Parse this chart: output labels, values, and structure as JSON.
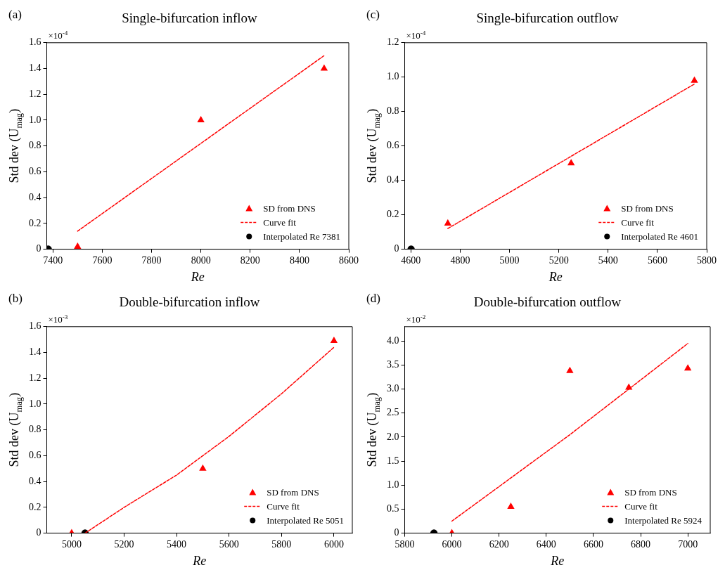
{
  "chart_data": [
    {
      "type": "scatter",
      "title": "Single-bifurcation inflow",
      "xlabel": "Re",
      "ylabel": "Std dev (U$_{mag}$)",
      "annotations": [
        "(a)",
        "×10$^{-4}$"
      ],
      "xlim": [
        7375,
        8600
      ],
      "xticks": [
        7400,
        7600,
        7800,
        8000,
        8200,
        8400,
        8600
      ],
      "ylim": [
        0,
        1.6
      ],
      "yticks": [
        0,
        0.2,
        0.4,
        0.6,
        0.8,
        {
          "value": 1,
          "label": "1.0"
        },
        1.2,
        1.4,
        1.6
      ],
      "grid": false,
      "legend": "bottom right",
      "series": [
        {
          "name": "SD from DNS",
          "type": "scatter",
          "marker": "triangle",
          "color": "#ff0000",
          "x": [
            7500,
            8000,
            8500
          ],
          "values": [
            0.02,
            1.0,
            1.4
          ]
        },
        {
          "name": "Curve fit",
          "type": "line",
          "marker": "none",
          "line_style": "dashed",
          "color": "#ff0000",
          "x": [
            7500,
            8500
          ],
          "values": [
            0.14,
            1.5
          ]
        },
        {
          "name": "Interpolated Re 7381",
          "type": "scatter",
          "marker": "circle",
          "color": "#000000",
          "x": [
            7381
          ],
          "values": [
            0
          ]
        }
      ]
    },
    {
      "type": "scatter",
      "title": "Single-bifurcation outflow",
      "xlabel": "Re",
      "ylabel": "Std dev (U$_{mag}$)",
      "annotations": [
        "(c)",
        "×10$^{-4}$"
      ],
      "xlim": [
        4575,
        5800
      ],
      "xticks": [
        4600,
        4800,
        5000,
        5200,
        5400,
        5600,
        5800
      ],
      "ylim": [
        0,
        1.2
      ],
      "yticks": [
        0,
        0.2,
        0.4,
        0.6,
        0.8,
        {
          "value": 1,
          "label": "1.0"
        },
        1.2
      ],
      "grid": false,
      "legend": "bottom right",
      "series": [
        {
          "name": "SD from DNS",
          "type": "scatter",
          "marker": "triangle",
          "color": "#ff0000",
          "x": [
            4750,
            5250,
            5750
          ],
          "values": [
            0.15,
            0.5,
            0.98
          ]
        },
        {
          "name": "Curve fit",
          "type": "line",
          "marker": "none",
          "line_style": "dashed",
          "color": "#ff0000",
          "x": [
            4750,
            5750
          ],
          "values": [
            0.12,
            0.96
          ]
        },
        {
          "name": "Interpolated Re 4601",
          "type": "scatter",
          "marker": "circle",
          "color": "#000000",
          "x": [
            4601
          ],
          "values": [
            0
          ]
        }
      ]
    },
    {
      "type": "scatter",
      "title": "Double-bifurcation inflow",
      "xlabel": "Re",
      "ylabel": "Std dev (U$_{mag}$)",
      "annotations": [
        "(b)",
        "×10$^{-3}$"
      ],
      "xlim": [
        4905,
        6070
      ],
      "xticks": [
        5000,
        5200,
        5400,
        5600,
        5800,
        6000
      ],
      "ylim": [
        0,
        1.6
      ],
      "yticks": [
        0,
        0.2,
        0.4,
        0.6,
        0.8,
        {
          "value": 1,
          "label": "1.0"
        },
        1.2,
        1.4,
        1.6
      ],
      "grid": false,
      "legend": "bottom right",
      "series": [
        {
          "name": "SD from DNS",
          "type": "scatter",
          "marker": "triangle",
          "color": "#ff0000",
          "x": [
            5000,
            5500,
            6000
          ],
          "values": [
            0.0,
            0.5,
            1.49
          ]
        },
        {
          "name": "Curve fit",
          "type": "line",
          "marker": "none",
          "line_style": "dashed",
          "color": "#ff0000",
          "x": [
            5051,
            5200,
            5400,
            5600,
            5800,
            6000
          ],
          "values": [
            0,
            0.2,
            0.45,
            0.75,
            1.08,
            1.44
          ]
        },
        {
          "name": "Interpolated Re 5051",
          "type": "scatter",
          "marker": "circle",
          "color": "#000000",
          "x": [
            5051
          ],
          "values": [
            0
          ]
        }
      ]
    },
    {
      "type": "scatter",
      "title": "Double-bifurcation outflow",
      "xlabel": "Re",
      "ylabel": "Std dev (U$_{mag}$)",
      "annotations": [
        "(d)",
        "×10$^{-2}$"
      ],
      "xlim": [
        5800,
        7095
      ],
      "xticks": [
        5800,
        6000,
        6200,
        6400,
        6600,
        6800,
        7000
      ],
      "ylim": [
        0,
        4.3
      ],
      "yticks": [
        0,
        0.5,
        {
          "value": 1,
          "label": "1.0"
        },
        1.5,
        {
          "value": 2,
          "label": "2.0"
        },
        2.5,
        {
          "value": 3,
          "label": "3.0"
        },
        3.5,
        {
          "value": 4,
          "label": "4.0"
        }
      ],
      "grid": false,
      "legend": "bottom right",
      "series": [
        {
          "name": "SD from DNS",
          "type": "scatter",
          "marker": "triangle",
          "color": "#ff0000",
          "x": [
            6000,
            6250,
            6500,
            6750,
            7000
          ],
          "values": [
            0,
            0.55,
            3.38,
            3.03,
            3.43
          ]
        },
        {
          "name": "Curve fit",
          "type": "line",
          "marker": "none",
          "line_style": "dashed",
          "color": "#ff0000",
          "x": [
            6000,
            6500,
            7000
          ],
          "values": [
            0.25,
            2.05,
            3.95
          ]
        },
        {
          "name": "Interpolated Re 5924",
          "type": "scatter",
          "marker": "circle",
          "color": "#000000",
          "x": [
            5924
          ],
          "values": [
            0
          ]
        }
      ]
    }
  ]
}
